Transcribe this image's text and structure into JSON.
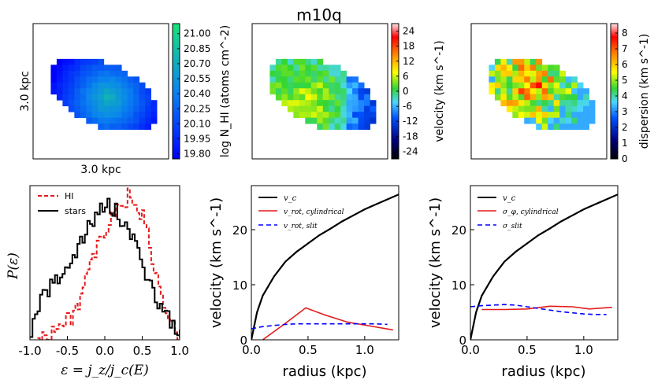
{
  "title": "m10q",
  "maps": {
    "scale_x": "3.0 kpc",
    "scale_y": "3.0 kpc",
    "cbar_hi": {
      "label": "log N_HI (atoms cm^-2)",
      "ticks": [
        "21.00",
        "20.85",
        "20.70",
        "20.55",
        "20.40",
        "20.25",
        "20.10",
        "19.95",
        "19.80"
      ],
      "range": [
        19.75,
        21.1
      ]
    },
    "cbar_vel": {
      "label": "velocity (km s^-1)",
      "ticks": [
        "24",
        "18",
        "12",
        "6",
        "0",
        "-6",
        "-12",
        "-18",
        "-24"
      ],
      "range": [
        -27,
        27
      ]
    },
    "cbar_disp": {
      "label": "dispersion (km s^-1)",
      "ticks": [
        "8",
        "7",
        "6",
        "5",
        "4",
        "3",
        "2",
        "1",
        "0"
      ],
      "range": [
        0,
        8.6
      ]
    }
  },
  "chart_data": [
    {
      "type": "line",
      "name": "circularity-distribution",
      "xlabel": "ε = j_z/j_c(E)",
      "ylabel": "P(ε)",
      "xlim": [
        -1.0,
        1.0
      ],
      "x_ticks": [
        "-1.0",
        "-0.5",
        "0.0",
        "0.5",
        "1.0"
      ],
      "legend": [
        "HI",
        "stars"
      ],
      "series": [
        {
          "name": "HI",
          "color": "#e41a1c",
          "dash": true,
          "x": [
            -0.9,
            -0.8,
            -0.7,
            -0.6,
            -0.5,
            -0.4,
            -0.3,
            -0.2,
            -0.1,
            0.0,
            0.1,
            0.2,
            0.3,
            0.4,
            0.5,
            0.6,
            0.7,
            0.8,
            0.9,
            1.0
          ],
          "y": [
            0.0,
            0.03,
            0.07,
            0.09,
            0.12,
            0.2,
            0.32,
            0.48,
            0.6,
            0.7,
            0.8,
            0.88,
            0.93,
            0.88,
            0.78,
            0.58,
            0.35,
            0.18,
            0.07,
            0.0
          ]
        },
        {
          "name": "stars",
          "color": "#000000",
          "dash": false,
          "x": [
            -1.0,
            -0.9,
            -0.8,
            -0.7,
            -0.6,
            -0.5,
            -0.4,
            -0.3,
            -0.2,
            -0.1,
            0.0,
            0.1,
            0.2,
            0.3,
            0.4,
            0.5,
            0.6,
            0.7,
            0.8,
            0.9,
            1.0
          ],
          "y": [
            0.05,
            0.2,
            0.3,
            0.36,
            0.42,
            0.5,
            0.56,
            0.66,
            0.74,
            0.84,
            0.9,
            0.85,
            0.78,
            0.72,
            0.6,
            0.46,
            0.36,
            0.24,
            0.16,
            0.1,
            0.02
          ]
        }
      ]
    },
    {
      "type": "line",
      "name": "rotation-curve",
      "xlabel": "radius (kpc)",
      "ylabel": "velocity (km s^-1)",
      "xlim": [
        0,
        1.3
      ],
      "ylim": [
        0,
        28
      ],
      "x_ticks": [
        "0.0",
        "0.5",
        "1.0"
      ],
      "y_ticks": [
        "0",
        "10",
        "20"
      ],
      "legend": [
        "v_c",
        "v_rot, cylindrical",
        "v_rot, slit"
      ],
      "series": [
        {
          "name": "v_c",
          "color": "#000000",
          "dash": false,
          "x": [
            0.0,
            0.05,
            0.1,
            0.2,
            0.3,
            0.4,
            0.5,
            0.6,
            0.7,
            0.8,
            0.9,
            1.0,
            1.1,
            1.2,
            1.3
          ],
          "y": [
            0.0,
            5.0,
            8.0,
            11.5,
            14.2,
            16.0,
            17.5,
            19.0,
            20.2,
            21.5,
            22.6,
            23.7,
            24.6,
            25.5,
            26.4
          ]
        },
        {
          "name": "v_rot, cylindrical",
          "color": "#e41a1c",
          "dash": false,
          "x": [
            0.1,
            0.3,
            0.48,
            0.65,
            0.85,
            1.05,
            1.25
          ],
          "y": [
            0.0,
            3.0,
            5.8,
            4.5,
            3.2,
            2.5,
            1.8
          ]
        },
        {
          "name": "v_rot, slit",
          "color": "#0000ff",
          "dash": true,
          "x": [
            0.0,
            0.1,
            0.2,
            0.3,
            0.4,
            0.5,
            0.6,
            0.7,
            0.8,
            0.9,
            1.0,
            1.1,
            1.2
          ],
          "y": [
            2.0,
            2.4,
            2.6,
            2.8,
            2.9,
            2.9,
            2.9,
            2.9,
            2.9,
            2.9,
            2.9,
            2.9,
            2.8
          ]
        }
      ]
    },
    {
      "type": "line",
      "name": "dispersion-curve",
      "xlabel": "radius (kpc)",
      "ylabel": "velocity (km s^-1)",
      "xlim": [
        0,
        1.3
      ],
      "ylim": [
        0,
        28
      ],
      "x_ticks": [
        "0.0",
        "0.5",
        "1.0"
      ],
      "y_ticks": [
        "0",
        "10",
        "20"
      ],
      "legend": [
        "v_c",
        "σ_φ, cylindrical",
        "σ_slit"
      ],
      "series": [
        {
          "name": "v_c",
          "color": "#000000",
          "dash": false,
          "x": [
            0.0,
            0.05,
            0.1,
            0.2,
            0.3,
            0.4,
            0.5,
            0.6,
            0.7,
            0.8,
            0.9,
            1.0,
            1.1,
            1.2,
            1.3
          ],
          "y": [
            0.0,
            5.0,
            8.0,
            11.5,
            14.2,
            16.0,
            17.5,
            19.0,
            20.2,
            21.5,
            22.6,
            23.7,
            24.6,
            25.5,
            26.4
          ]
        },
        {
          "name": "σ_φ, cylindrical",
          "color": "#e41a1c",
          "dash": false,
          "x": [
            0.1,
            0.3,
            0.5,
            0.7,
            0.9,
            1.05,
            1.25
          ],
          "y": [
            5.5,
            5.5,
            5.6,
            6.1,
            6.0,
            5.6,
            5.9
          ]
        },
        {
          "name": "σ_slit",
          "color": "#0000ff",
          "dash": true,
          "x": [
            0.0,
            0.1,
            0.2,
            0.3,
            0.4,
            0.5,
            0.6,
            0.7,
            0.8,
            0.9,
            1.0,
            1.1,
            1.2
          ],
          "y": [
            6.0,
            6.2,
            6.3,
            6.4,
            6.3,
            6.0,
            5.7,
            5.4,
            5.1,
            4.9,
            4.7,
            4.6,
            4.6
          ]
        }
      ]
    }
  ]
}
